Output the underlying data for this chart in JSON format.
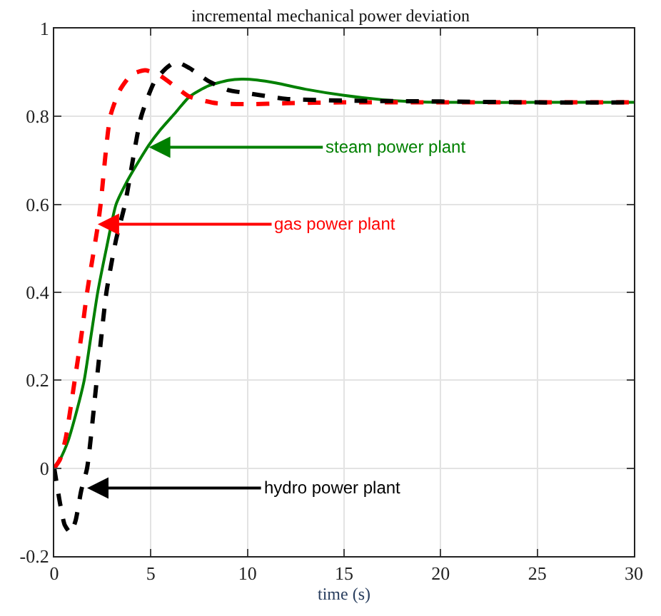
{
  "chart_data": {
    "type": "line",
    "title": "incremental mechanical power deviation",
    "xlabel": "time (s)",
    "xlim": [
      0,
      30
    ],
    "xticks": [
      0,
      5,
      10,
      15,
      20,
      25,
      30
    ],
    "ylim": [
      -0.2,
      1
    ],
    "yticks": [
      -0.2,
      0,
      0.2,
      0.4,
      0.6,
      0.8,
      1
    ],
    "grid": true,
    "series": [
      {
        "color": "#008000",
        "line_style": "solid",
        "x": [
          0,
          0.3,
          0.7,
          1.1,
          1.55,
          1.9,
          2.25,
          2.7,
          3.2,
          3.8,
          4.4,
          4.9,
          5.5,
          6.2,
          7,
          8,
          9,
          9.7,
          10.5,
          11.5,
          13,
          15,
          17,
          19,
          21,
          25,
          30
        ],
        "values": [
          0,
          0.02,
          0.06,
          0.12,
          0.2,
          0.3,
          0.4,
          0.5,
          0.6,
          0.655,
          0.7,
          0.735,
          0.77,
          0.805,
          0.845,
          0.87,
          0.882,
          0.885,
          0.883,
          0.876,
          0.862,
          0.848,
          0.838,
          0.833,
          0.832,
          0.832,
          0.832
        ]
      },
      {
        "color": "#ff0000",
        "line_style": "dashed",
        "x": [
          0,
          0.3,
          0.6,
          1.06,
          1.4,
          1.7,
          2.25,
          2.4,
          2.9,
          3.4,
          4,
          4.7,
          5.4,
          6.2,
          7,
          8.4,
          10,
          12,
          15,
          20,
          25,
          30
        ],
        "values": [
          0,
          0.02,
          0.07,
          0.2,
          0.3,
          0.4,
          0.55,
          0.6,
          0.8,
          0.86,
          0.895,
          0.905,
          0.895,
          0.87,
          0.845,
          0.83,
          0.828,
          0.83,
          0.832,
          0.832,
          0.832,
          0.832
        ]
      },
      {
        "color": "#000000",
        "line_style": "dashed",
        "x": [
          0,
          0.3,
          0.55,
          0.85,
          1.1,
          1.4,
          1.7,
          2.2,
          2.7,
          3.2,
          3.66,
          4.5,
          5.2,
          5.8,
          6.3,
          7,
          8,
          9,
          10,
          12,
          15,
          20,
          25,
          30
        ],
        "values": [
          0,
          -0.08,
          -0.13,
          -0.147,
          -0.12,
          -0.05,
          0,
          0.2,
          0.4,
          0.52,
          0.6,
          0.8,
          0.88,
          0.91,
          0.924,
          0.91,
          0.88,
          0.86,
          0.853,
          0.84,
          0.836,
          0.834,
          0.832,
          0.832
        ]
      }
    ],
    "annotations": [
      {
        "text": "steam power plant",
        "x": 4.9,
        "y": 0.73
      },
      {
        "text": "gas power plant",
        "x": 2.25,
        "y": 0.555
      },
      {
        "text": "hydro power plant",
        "x": 1.7,
        "y": -0.045
      }
    ]
  }
}
